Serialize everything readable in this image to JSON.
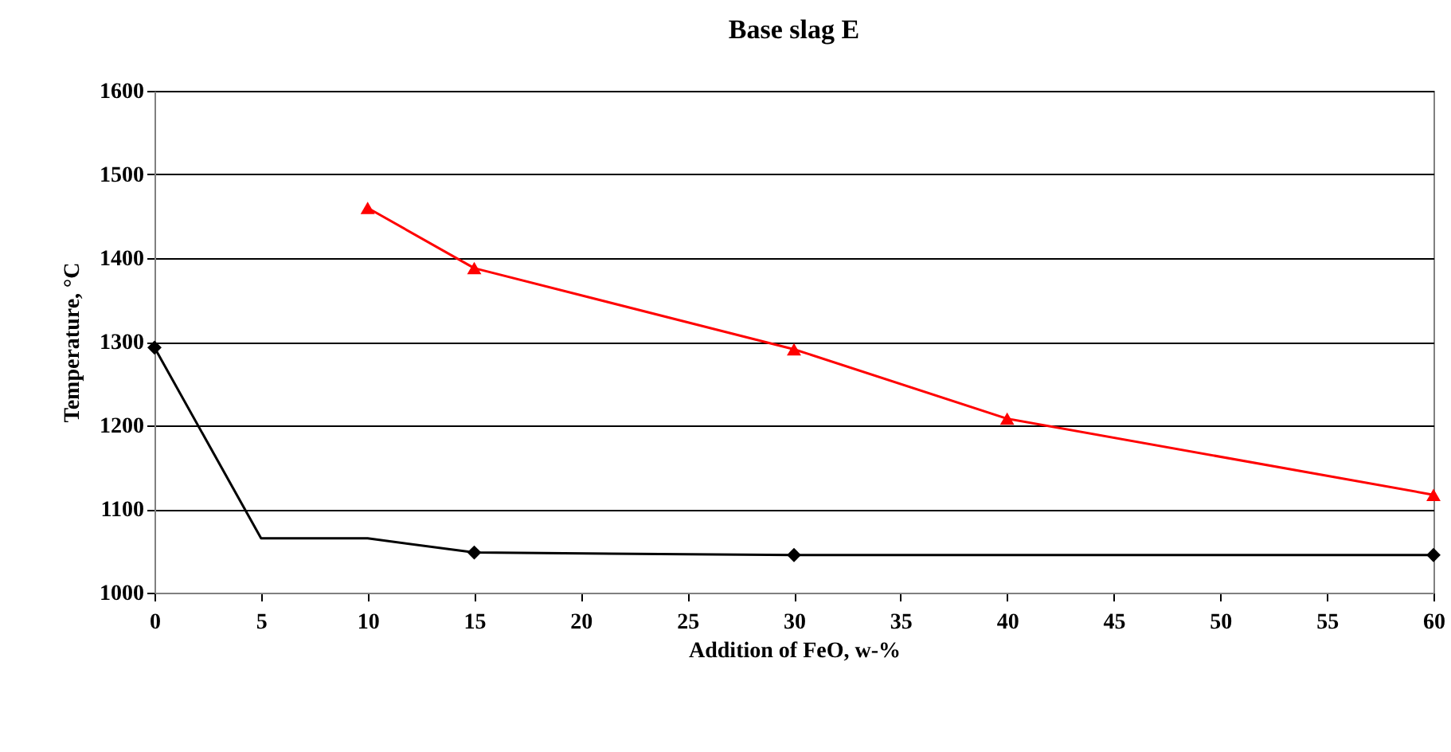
{
  "chart_data": {
    "type": "line",
    "title": "Base slag E",
    "xlabel": "Addition of FeO, w-%",
    "ylabel": "Temperature, °C",
    "series": [
      {
        "color": "#000000",
        "marker": "none",
        "x": [
          0,
          5,
          10,
          15,
          30,
          40,
          60
        ],
        "values": [
          1293,
          1065,
          1065,
          1048,
          1045,
          1045,
          1045
        ]
      },
      {
        "type": "scatter",
        "color": "#000000",
        "marker": "diamond",
        "x": [
          0,
          15,
          30,
          60
        ],
        "values": [
          1293,
          1048,
          1045,
          1045
        ]
      },
      {
        "color": "#ff0000",
        "marker": "triangle",
        "x": [
          10,
          15,
          30,
          40,
          60
        ],
        "values": [
          1460,
          1388,
          1291,
          1208,
          1117
        ]
      }
    ],
    "xlim": [
      0,
      60
    ],
    "xticks": [
      0,
      5,
      10,
      15,
      20,
      25,
      30,
      35,
      40,
      45,
      50,
      55,
      60
    ],
    "ylim": [
      1000,
      1600
    ],
    "yticks": [
      1000,
      1100,
      1200,
      1300,
      1400,
      1500,
      1600
    ],
    "grid": "y",
    "legend": false
  }
}
